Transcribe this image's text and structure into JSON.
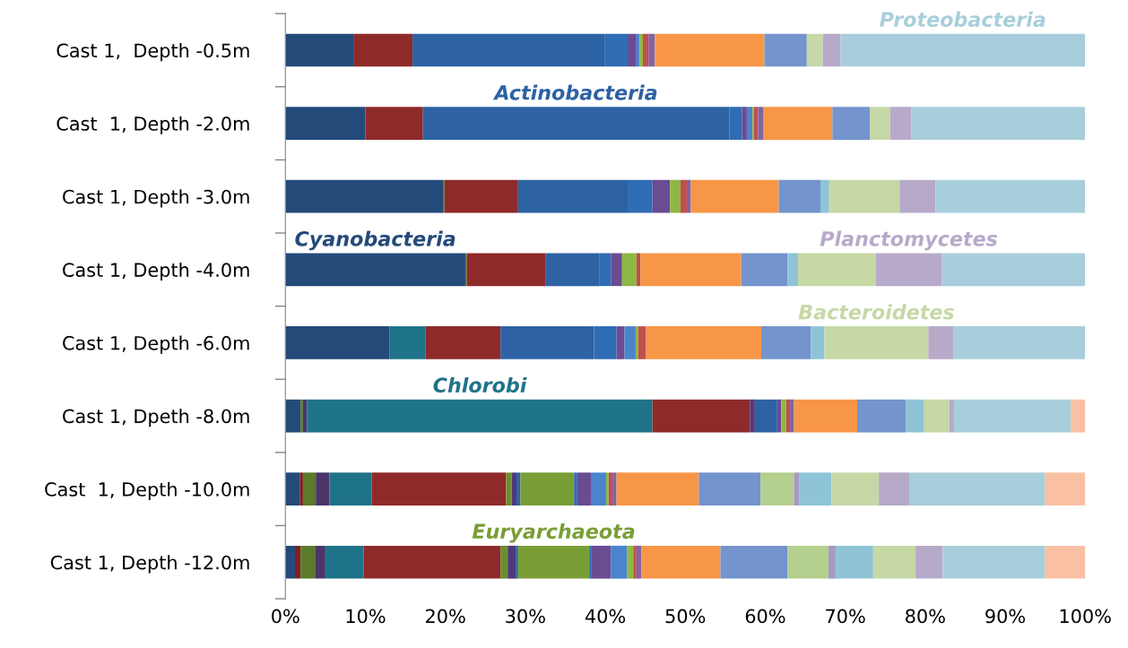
{
  "chart_data": {
    "type": "bar",
    "orientation": "horizontal",
    "stacked": true,
    "legend": false,
    "grid": false,
    "categories": [
      "Cast 1,  Depth -0.5m",
      "Cast  1, Depth -2.0m",
      "Cast 1, Depth -3.0m",
      "Cast 1, Depth -4.0m",
      "Cast 1, Depth -6.0m",
      "Cast 1, Dpeth -8.0m",
      "Cast  1, Depth -10.0m",
      "Cast 1, Depth -12.0m"
    ],
    "xlim": [
      0,
      100
    ],
    "xticks": [
      {
        "value": 0,
        "label": "0%"
      },
      {
        "value": 10,
        "label": "10%"
      },
      {
        "value": 20,
        "label": "20%"
      },
      {
        "value": 30,
        "label": "30%"
      },
      {
        "value": 40,
        "label": "40%"
      },
      {
        "value": 50,
        "label": "50%"
      },
      {
        "value": 60,
        "label": "60%"
      },
      {
        "value": 70,
        "label": "70%"
      },
      {
        "value": 80,
        "label": "80%"
      },
      {
        "value": 90,
        "label": "90%"
      },
      {
        "value": 100,
        "label": "100%"
      }
    ],
    "series": [
      {
        "name": "Cyanobacteria",
        "color": "#244a7a",
        "values": [
          8.5,
          10.0,
          19.7,
          22.5,
          13.0,
          1.9,
          1.8,
          1.2
        ]
      },
      {
        "color": "#7e2020",
        "values": [
          0,
          0,
          0,
          0,
          0,
          0,
          0.4,
          0.7
        ]
      },
      {
        "color": "#5b7a2a",
        "values": [
          0,
          0,
          0.2,
          0.2,
          0,
          0.3,
          1.6,
          1.8
        ]
      },
      {
        "color": "#4b3569",
        "values": [
          0,
          0,
          0,
          0,
          0,
          0.5,
          1.7,
          1.3
        ]
      },
      {
        "name": "Chlorobi",
        "color": "#1f7388",
        "values": [
          0,
          0,
          0,
          0,
          4.5,
          43.2,
          5.3,
          4.8
        ]
      },
      {
        "color": "#8f2a2a",
        "values": [
          7.4,
          7.2,
          9.2,
          9.8,
          9.4,
          12.2,
          16.8,
          17.1
        ]
      },
      {
        "color": "#6b8f30",
        "values": [
          0,
          0,
          0,
          0,
          0,
          0,
          0.7,
          0.9
        ]
      },
      {
        "color": "#50397a",
        "values": [
          0,
          0,
          0,
          0,
          0,
          0.6,
          0.6,
          1.0
        ]
      },
      {
        "name": "Actinobacteria",
        "color": "#2d62a3",
        "values": [
          24.0,
          38.3,
          13.7,
          6.8,
          11.7,
          2.8,
          0.5,
          0.3
        ]
      },
      {
        "name": "Euryarchaeota",
        "color": "#7a9e36",
        "values": [
          0,
          0,
          0,
          0,
          0,
          0,
          6.7,
          8.9
        ]
      },
      {
        "color": "#2f6db5",
        "values": [
          2.9,
          1.6,
          3.1,
          1.4,
          2.8,
          0,
          0.4,
          0.3
        ]
      },
      {
        "color": "#6a4c92",
        "values": [
          1.1,
          0.6,
          2.2,
          1.4,
          1.0,
          0.5,
          1.7,
          2.4
        ]
      },
      {
        "color": "#4a84cc",
        "values": [
          0.4,
          0.7,
          0,
          0,
          1.4,
          0,
          1.9,
          2.0
        ]
      },
      {
        "color": "#8db843",
        "values": [
          0.4,
          0.2,
          1.3,
          1.8,
          0.3,
          0.6,
          0.3,
          0.8
        ]
      },
      {
        "color": "#c0504d",
        "values": [
          0.7,
          0.5,
          0.8,
          0.5,
          1.0,
          0.5,
          0.5,
          0.4
        ]
      },
      {
        "color": "#8064a2",
        "values": [
          0.8,
          0.7,
          0.5,
          0,
          0,
          0.5,
          0.5,
          0.6
        ]
      },
      {
        "color": "#f79646",
        "values": [
          13.7,
          8.6,
          11.0,
          12.6,
          14.4,
          7.9,
          10.3,
          9.9
        ]
      },
      {
        "color": "#7394cc",
        "values": [
          5.3,
          4.7,
          5.2,
          5.8,
          6.2,
          6.1,
          7.7,
          8.4
        ]
      },
      {
        "color": "#b5cf8f",
        "values": [
          0,
          0,
          0,
          0,
          0,
          0,
          4.2,
          5.1
        ]
      },
      {
        "color": "#a899bf",
        "values": [
          0,
          0,
          0,
          0,
          0,
          0,
          0.6,
          0.9
        ]
      },
      {
        "color": "#8ec4d6",
        "values": [
          0,
          0,
          1.1,
          1.3,
          1.7,
          2.2,
          4.1,
          4.7
        ]
      },
      {
        "name": "Bacteroidetes",
        "color": "#c6d8a6",
        "values": [
          2.0,
          2.5,
          8.8,
          9.7,
          13.0,
          3.2,
          5.9,
          5.3
        ]
      },
      {
        "name": "Planctomycetes",
        "color": "#b7aac9",
        "values": [
          2.2,
          2.7,
          4.5,
          8.3,
          3.1,
          0.6,
          3.8,
          3.4
        ]
      },
      {
        "name": "Proteobacteria",
        "color": "#a8cedb",
        "values": [
          30.6,
          21.7,
          18.7,
          17.9,
          16.5,
          14.6,
          17.0,
          12.8
        ]
      },
      {
        "color": "#f9c0a4",
        "values": [
          0,
          0,
          0,
          0,
          0,
          1.8,
          5.0,
          5.0
        ]
      }
    ]
  }
}
